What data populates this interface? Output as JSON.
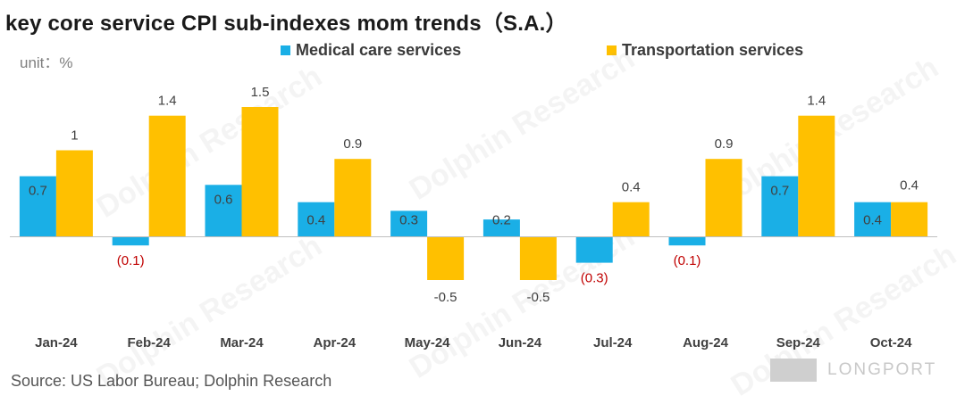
{
  "title": "key core service CPI sub-indexes mom trends（S.A.）",
  "unit_label": "unit：%",
  "source": "Source: US Labor Bureau; Dolphin Research",
  "brand": "LONGPORT",
  "watermark": "Dolphin Research",
  "colors": {
    "medical": "#1aafe6",
    "transport": "#ffc000",
    "negative_label": "#c00000",
    "axis": "#bfbfbf"
  },
  "chart_data": {
    "type": "bar",
    "categories": [
      "Jan-24",
      "Feb-24",
      "Mar-24",
      "Apr-24",
      "May-24",
      "Jun-24",
      "Jul-24",
      "Aug-24",
      "Sep-24",
      "Oct-24"
    ],
    "series": [
      {
        "name": "Medical care services",
        "values": [
          0.7,
          -0.1,
          0.6,
          0.4,
          0.3,
          0.2,
          -0.3,
          -0.1,
          0.7,
          0.4
        ],
        "labels": [
          "0.7",
          "(0.1)",
          "0.6",
          "0.4",
          "0.3",
          "0.2",
          "(0.3)",
          "(0.1)",
          "0.7",
          "0.4"
        ]
      },
      {
        "name": "Transportation services",
        "values": [
          1.0,
          1.4,
          1.5,
          0.9,
          -0.5,
          -0.5,
          0.4,
          0.9,
          1.4,
          0.4
        ],
        "labels": [
          "1",
          "1.4",
          "1.5",
          "0.9",
          "-0.5",
          "-0.5",
          "0.4",
          "0.9",
          "1.4",
          "0.4"
        ]
      }
    ],
    "ylim": [
      -1.3,
      1.5
    ],
    "grid": false,
    "legend_position": "top"
  }
}
